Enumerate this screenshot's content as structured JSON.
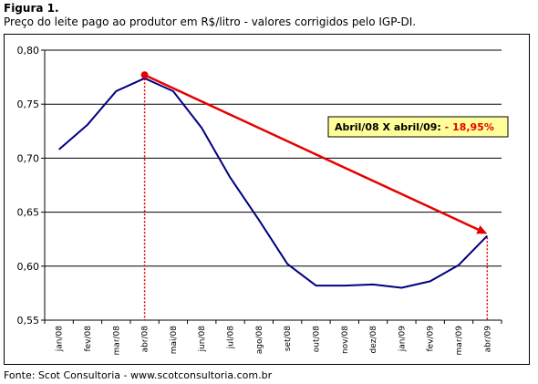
{
  "figure_label": "Figura 1.",
  "caption": "Preço do leite pago ao produtor em R$/litro - valores corrigidos pelo IGP-DI.",
  "source": "Fonte: Scot Consultoria - www.scotconsultoria.com.br",
  "colors": {
    "line": "#000080",
    "arrow": "#e60000",
    "annotation_bg": "#ffff99"
  },
  "annotation": {
    "prefix": "Abril/08 X abril/09",
    "separator": ": ",
    "value": "- 18,95%"
  },
  "chart_data": {
    "type": "line",
    "title": "",
    "xlabel": "",
    "ylabel": "",
    "categories": [
      "jan/08",
      "fev/08",
      "mar/08",
      "abr/08",
      "mai/08",
      "jun/08",
      "jul/08",
      "ago/08",
      "set/08",
      "out/08",
      "nov/08",
      "dez/08",
      "jan/09",
      "fev/09",
      "mar/09",
      "abr/09"
    ],
    "series": [
      {
        "values": [
          0.708,
          0.731,
          0.762,
          0.774,
          0.762,
          0.728,
          0.682,
          0.643,
          0.602,
          0.582,
          0.582,
          0.583,
          0.58,
          0.586,
          0.601,
          0.628
        ]
      }
    ],
    "ylim": [
      0.55,
      0.8
    ],
    "yticks": [
      "0,55",
      "0,60",
      "0,65",
      "0,70",
      "0,75",
      "0,80"
    ],
    "grid": true,
    "trend_arrow": {
      "from": "abr/08",
      "to": "abr/09",
      "from_value": 0.777,
      "to_value": 0.63
    }
  }
}
